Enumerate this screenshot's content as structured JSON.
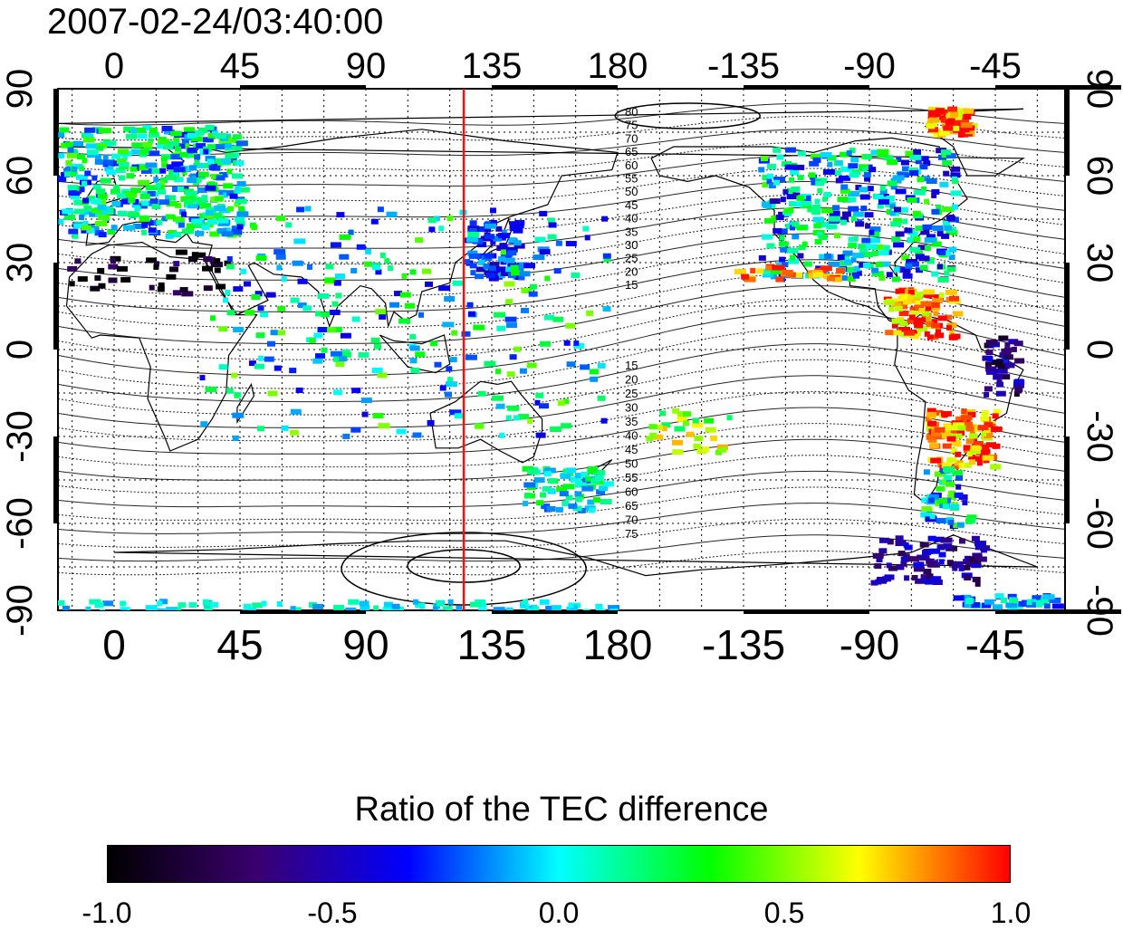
{
  "timestamp": "2007-02-24/03:40:00",
  "map": {
    "longitude_ticks": [
      "0",
      "45",
      "90",
      "135",
      "180",
      "-135",
      "-90",
      "-45"
    ],
    "latitude_ticks": [
      "90",
      "60",
      "30",
      "0",
      "-30",
      "-60",
      "-90"
    ],
    "meridian_marker_longitude": 125,
    "contour_labels_north": [
      "80",
      "75",
      "70",
      "65",
      "60",
      "55",
      "50",
      "45",
      "40",
      "35",
      "30",
      "25",
      "20",
      "15"
    ],
    "contour_labels_south": [
      "15",
      "20",
      "25",
      "30",
      "35",
      "40",
      "45",
      "50",
      "55",
      "60",
      "65",
      "70",
      "75"
    ]
  },
  "colorbar": {
    "title": "Ratio of the TEC difference",
    "range": [
      -1.0,
      1.0
    ],
    "tick_labels": [
      "-1.0",
      "-0.5",
      "0.0",
      "0.5",
      "1.0"
    ],
    "colors": [
      "#000000",
      "#3a0070",
      "#0000ff",
      "#00ffff",
      "#00ff00",
      "#ffff00",
      "#ff0000"
    ]
  },
  "colors": {
    "marker_line": "#ee1111"
  }
}
